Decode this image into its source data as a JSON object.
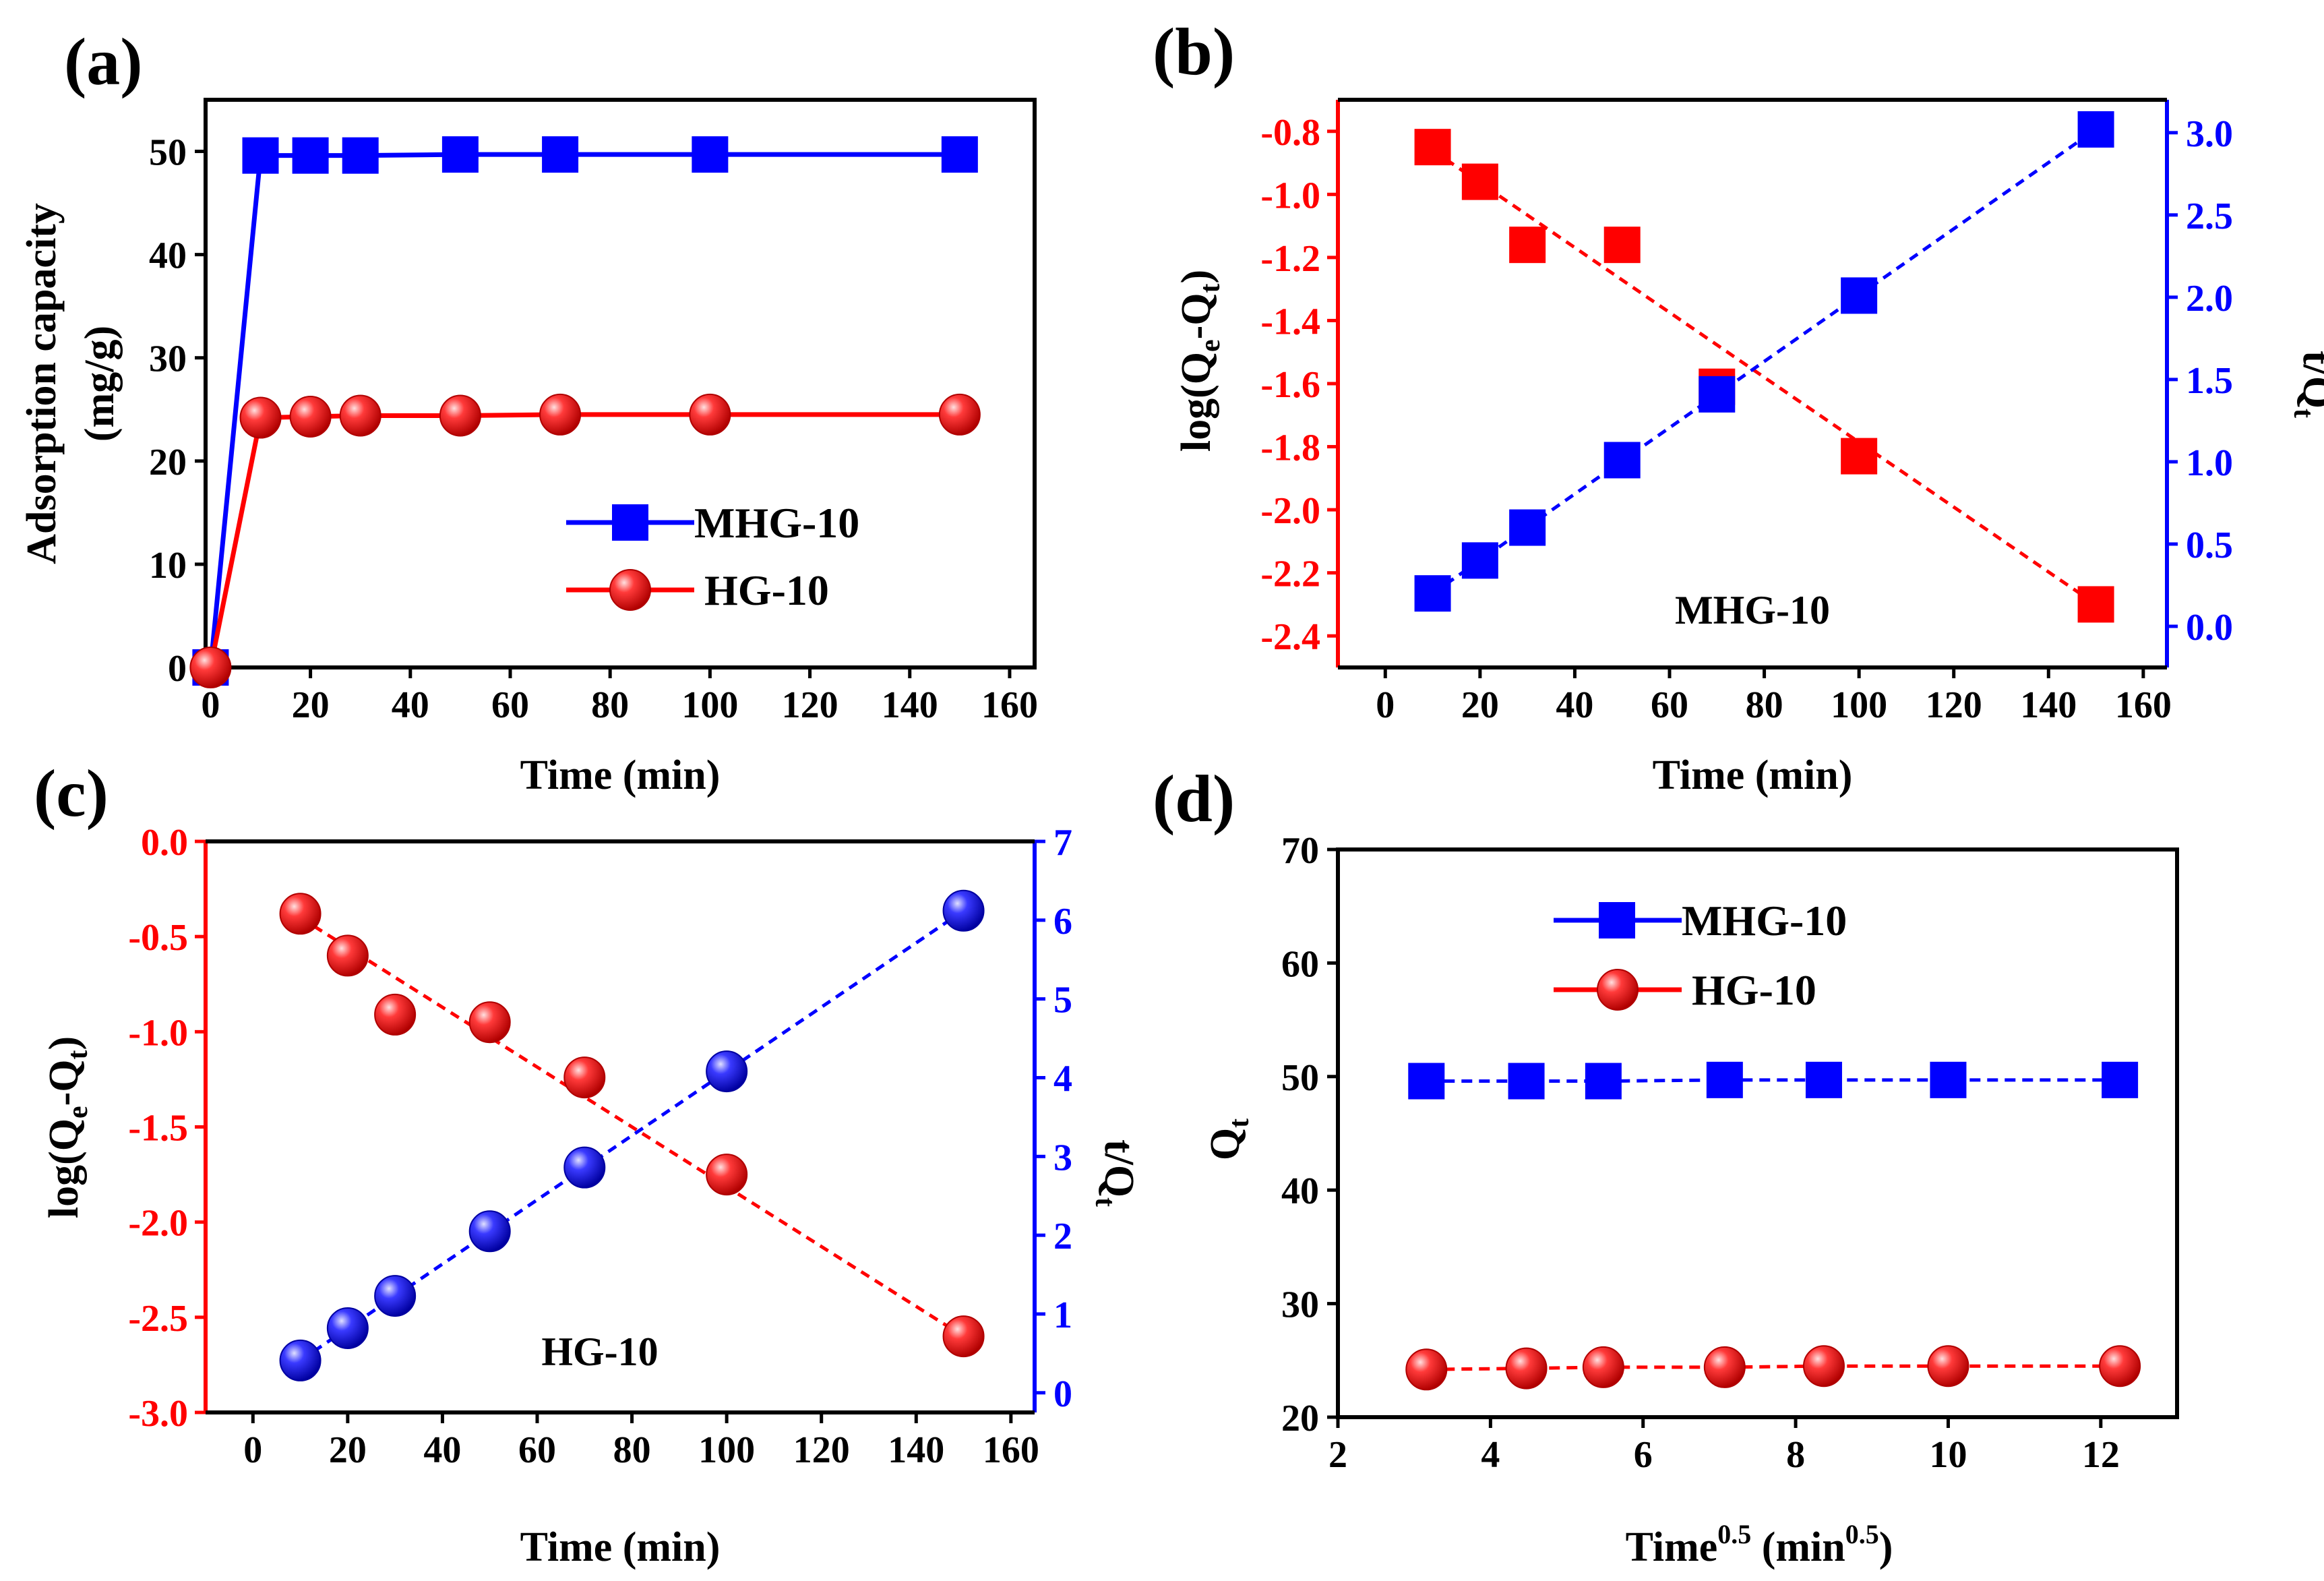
{
  "figure": {
    "colors": {
      "blue": "#0000ff",
      "red": "#ff0000",
      "black": "#000000"
    }
  },
  "chart_data": [
    {
      "id": "a",
      "panel_label": "(a)",
      "type": "line",
      "xlabel": "Time (min)",
      "ylabel_line1": "Adsorption capacity",
      "ylabel_line2": "(mg/g)",
      "xlim": [
        -1,
        165
      ],
      "ylim": [
        0,
        55
      ],
      "xticks": [
        0,
        20,
        40,
        60,
        80,
        100,
        120,
        140,
        160
      ],
      "yticks": [
        0,
        10,
        20,
        30,
        40,
        50
      ],
      "legend": [
        "MHG-10",
        "HG-10"
      ],
      "series": [
        {
          "name": "MHG-10",
          "color": "#0000ff",
          "marker": "square",
          "line": "solid",
          "x": [
            0,
            10,
            20,
            30,
            50,
            70,
            100,
            150
          ],
          "y": [
            0,
            49.6,
            49.6,
            49.6,
            49.7,
            49.7,
            49.7,
            49.7
          ]
        },
        {
          "name": "HG-10",
          "color": "#ff0000",
          "marker": "sphere",
          "line": "solid",
          "x": [
            0,
            10,
            20,
            30,
            50,
            70,
            100,
            150
          ],
          "y": [
            0,
            24.2,
            24.3,
            24.4,
            24.4,
            24.5,
            24.5,
            24.5
          ]
        }
      ]
    },
    {
      "id": "b",
      "panel_label": "(b)",
      "type": "scatter",
      "annotation": "MHG-10",
      "xlabel": "Time (min)",
      "ylabel_left": "log(Qe-Qt)",
      "ylabel_right": "t/Qt",
      "xlim": [
        -10,
        165
      ],
      "ylim_left": [
        -2.5,
        -0.7
      ],
      "ylim_right": [
        -0.25,
        3.2
      ],
      "xticks": [
        0,
        20,
        40,
        60,
        80,
        100,
        120,
        140,
        160
      ],
      "yticks_left": [
        "-0.8",
        "-1.0",
        "-1.2",
        "-1.4",
        "-1.6",
        "-1.8",
        "-2.0",
        "-2.2",
        "-2.4"
      ],
      "yticks_right": [
        "0.0",
        "0.5",
        "1.0",
        "1.5",
        "2.0",
        "2.5",
        "3.0"
      ],
      "series": [
        {
          "name": "log(Qe-Qt)",
          "axis": "left",
          "color": "#ff0000",
          "marker": "square",
          "x": [
            10,
            20,
            30,
            50,
            70,
            100,
            150
          ],
          "y": [
            -0.85,
            -0.96,
            -1.16,
            -1.16,
            -1.61,
            -1.83,
            -2.3
          ],
          "fit": [
            [
              10,
              -0.86
            ],
            [
              150,
              -2.3
            ]
          ]
        },
        {
          "name": "t/Qt",
          "axis": "right",
          "color": "#0000ff",
          "marker": "square",
          "x": [
            10,
            20,
            30,
            50,
            70,
            100,
            150
          ],
          "y": [
            0.2,
            0.4,
            0.6,
            1.01,
            1.41,
            2.01,
            3.02
          ],
          "fit": [
            [
              10,
              0.2
            ],
            [
              150,
              3.02
            ]
          ]
        }
      ]
    },
    {
      "id": "c",
      "panel_label": "(c)",
      "type": "scatter",
      "annotation": "HG-10",
      "xlabel": "Time (min)",
      "ylabel_left": "log(Qe-Qt)",
      "ylabel_right": "t/Qt",
      "xlim": [
        -10,
        165
      ],
      "ylim_left": [
        -3.0,
        0.0
      ],
      "ylim_right": [
        -0.25,
        7.0
      ],
      "xticks": [
        0,
        20,
        40,
        60,
        80,
        100,
        120,
        140,
        160
      ],
      "yticks_left": [
        "0.0",
        "-0.5",
        "-1.0",
        "-1.5",
        "-2.0",
        "-2.5",
        "-3.0"
      ],
      "yticks_right": [
        "0",
        "1",
        "2",
        "3",
        "4",
        "5",
        "6",
        "7"
      ],
      "series": [
        {
          "name": "log(Qe-Qt)",
          "axis": "left",
          "color": "#ff0000",
          "marker": "sphere",
          "x": [
            10,
            20,
            30,
            50,
            70,
            100,
            150
          ],
          "y": [
            -0.38,
            -0.6,
            -0.91,
            -0.95,
            -1.24,
            -1.75,
            -2.6
          ],
          "fit": [
            [
              10,
              -0.4
            ],
            [
              150,
              -2.6
            ]
          ]
        },
        {
          "name": "t/Qt",
          "axis": "right",
          "color": "#0000ff",
          "marker": "sphere",
          "x": [
            10,
            20,
            30,
            50,
            70,
            100,
            150
          ],
          "y": [
            0.41,
            0.82,
            1.23,
            2.05,
            2.86,
            4.08,
            6.12
          ],
          "fit": [
            [
              10,
              0.41
            ],
            [
              150,
              6.12
            ]
          ]
        }
      ]
    },
    {
      "id": "d",
      "panel_label": "(d)",
      "type": "line",
      "xlabel_base": "Time",
      "xlabel_exp1": "0.5",
      "xlabel_mid": " (min",
      "xlabel_exp2": "0.5",
      "xlabel_end": ")",
      "ylabel": "Qt",
      "xlim": [
        2,
        13
      ],
      "ylim": [
        20,
        70
      ],
      "xticks": [
        2,
        4,
        6,
        8,
        10,
        12
      ],
      "yticks": [
        20,
        30,
        40,
        50,
        60,
        70
      ],
      "legend": [
        "MHG-10",
        "HG-10"
      ],
      "series": [
        {
          "name": "MHG-10",
          "color": "#0000ff",
          "marker": "square",
          "line": "dashed",
          "x": [
            3.16,
            4.47,
            5.48,
            7.07,
            8.37,
            10.0,
            12.25
          ],
          "y": [
            49.6,
            49.6,
            49.6,
            49.7,
            49.7,
            49.7,
            49.7
          ]
        },
        {
          "name": "HG-10",
          "color": "#ff0000",
          "marker": "sphere",
          "line": "dashed",
          "x": [
            3.16,
            4.47,
            5.48,
            7.07,
            8.37,
            10.0,
            12.25
          ],
          "y": [
            24.2,
            24.3,
            24.4,
            24.4,
            24.5,
            24.5,
            24.5
          ]
        }
      ]
    }
  ]
}
